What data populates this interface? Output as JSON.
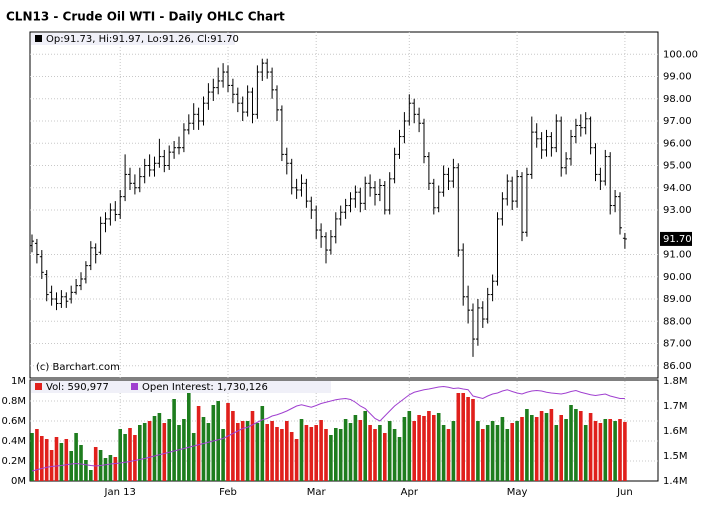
{
  "chart_data": {
    "type": "ohlc",
    "title": "CLN13 - Crude Oil WTI - Daily OHLC Chart",
    "legend_text": "Op:91.73, Hi:91.97, Lo:91.26, Cl:91.70",
    "copyright": "(c) Barchart.com",
    "last_price_label": "91.70",
    "volume_legend": "Vol: 590,977",
    "oi_legend": "Open Interest: 1,730,126",
    "bar_color": "#000000",
    "up_color": "#1e7d1e",
    "down_color": "#e0201c",
    "oi_color": "#a040d0",
    "grid": true,
    "categories": [
      null,
      null,
      null,
      null,
      null,
      null,
      null,
      null,
      null,
      null,
      null,
      null,
      null,
      null,
      null,
      null,
      null,
      null,
      "Jan 13",
      null,
      null,
      null,
      null,
      null,
      null,
      null,
      null,
      null,
      null,
      null,
      null,
      null,
      null,
      null,
      null,
      null,
      null,
      null,
      null,
      null,
      "Feb",
      null,
      null,
      null,
      null,
      null,
      null,
      null,
      null,
      null,
      null,
      null,
      null,
      null,
      null,
      null,
      null,
      null,
      "Mar",
      null,
      null,
      null,
      null,
      null,
      null,
      null,
      null,
      null,
      null,
      null,
      null,
      null,
      null,
      null,
      null,
      null,
      null,
      "Apr",
      null,
      null,
      null,
      null,
      null,
      null,
      null,
      null,
      null,
      null,
      null,
      null,
      null,
      null,
      null,
      null,
      null,
      null,
      null,
      null,
      null,
      "May",
      null,
      null,
      null,
      null,
      null,
      null,
      null,
      null,
      null,
      null,
      null,
      null,
      null,
      null,
      null,
      null,
      null,
      null,
      null,
      null,
      null,
      "Jun"
    ],
    "ylim": [
      85.45,
      101
    ],
    "yticks": [
      {
        "value": 86,
        "label": "86.00"
      },
      {
        "value": 87,
        "label": "87.00"
      },
      {
        "value": 88,
        "label": "88.00"
      },
      {
        "value": 89,
        "label": "89.00"
      },
      {
        "value": 90,
        "label": "90.00"
      },
      {
        "value": 91,
        "label": "91.00"
      },
      {
        "value": 93,
        "label": "93.00"
      },
      {
        "value": 94,
        "label": "94.00"
      },
      {
        "value": 95,
        "label": "95.00"
      },
      {
        "value": 96,
        "label": "96.00"
      },
      {
        "value": 97,
        "label": "97.00"
      },
      {
        "value": 98,
        "label": "98.00"
      },
      {
        "value": 99,
        "label": "99.00"
      },
      {
        "value": 100,
        "label": "100.00"
      }
    ],
    "ohlc": [
      [
        91.4,
        91.9,
        91.1,
        91.6
      ],
      [
        91.5,
        91.7,
        90.6,
        91.0
      ],
      [
        90.9,
        91.2,
        89.9,
        90.2
      ],
      [
        90.1,
        90.3,
        88.9,
        89.2
      ],
      [
        89.3,
        89.6,
        88.7,
        89.0
      ],
      [
        89.0,
        89.3,
        88.5,
        88.8
      ],
      [
        88.8,
        89.4,
        88.6,
        89.1
      ],
      [
        89.1,
        89.3,
        88.6,
        88.9
      ],
      [
        89.0,
        89.6,
        88.8,
        89.3
      ],
      [
        89.3,
        89.9,
        89.2,
        89.6
      ],
      [
        89.6,
        90.2,
        89.4,
        89.9
      ],
      [
        89.9,
        90.7,
        89.7,
        90.5
      ],
      [
        90.5,
        91.6,
        90.3,
        91.3
      ],
      [
        91.3,
        91.5,
        90.6,
        91.0
      ],
      [
        91.1,
        92.7,
        91.0,
        92.4
      ],
      [
        92.4,
        92.9,
        92.0,
        92.6
      ],
      [
        92.6,
        93.3,
        92.3,
        93.0
      ],
      [
        93.0,
        93.4,
        92.5,
        92.8
      ],
      [
        92.8,
        93.9,
        92.6,
        93.6
      ],
      [
        93.6,
        95.5,
        93.4,
        94.6
      ],
      [
        94.6,
        94.9,
        93.9,
        94.2
      ],
      [
        94.2,
        94.6,
        93.7,
        94.0
      ],
      [
        94.0,
        94.9,
        93.8,
        94.5
      ],
      [
        94.5,
        95.3,
        94.2,
        95.0
      ],
      [
        95.0,
        95.5,
        94.5,
        94.8
      ],
      [
        94.8,
        95.4,
        94.5,
        95.1
      ],
      [
        95.1,
        96.2,
        94.9,
        95.4
      ],
      [
        95.4,
        95.7,
        94.7,
        95.0
      ],
      [
        95.0,
        95.9,
        94.8,
        95.6
      ],
      [
        95.6,
        96.1,
        95.3,
        95.8
      ],
      [
        95.8,
        96.3,
        95.5,
        95.8
      ],
      [
        95.8,
        96.9,
        95.6,
        96.6
      ],
      [
        96.6,
        97.3,
        96.4,
        96.9
      ],
      [
        96.9,
        97.8,
        96.6,
        97.3
      ],
      [
        97.3,
        97.6,
        96.6,
        97.0
      ],
      [
        97.0,
        98.1,
        96.8,
        97.8
      ],
      [
        97.8,
        98.7,
        97.5,
        98.3
      ],
      [
        98.3,
        98.9,
        97.9,
        98.5
      ],
      [
        98.5,
        99.4,
        98.2,
        98.8
      ],
      [
        98.8,
        99.6,
        98.5,
        99.2
      ],
      [
        99.2,
        99.5,
        98.3,
        98.6
      ],
      [
        98.6,
        98.9,
        97.8,
        98.2
      ],
      [
        98.2,
        98.5,
        97.4,
        97.8
      ],
      [
        97.8,
        98.1,
        97.0,
        97.4
      ],
      [
        97.4,
        98.6,
        97.2,
        98.3
      ],
      [
        98.3,
        98.5,
        96.9,
        97.3
      ],
      [
        97.3,
        99.5,
        97.1,
        99.2
      ],
      [
        99.2,
        99.8,
        98.8,
        99.6
      ],
      [
        99.6,
        99.8,
        98.9,
        99.2
      ],
      [
        99.2,
        99.4,
        98.0,
        98.4
      ],
      [
        98.4,
        98.6,
        97.0,
        97.5
      ],
      [
        97.5,
        97.7,
        95.2,
        95.5
      ],
      [
        95.5,
        95.8,
        94.6,
        95.1
      ],
      [
        95.1,
        95.3,
        93.7,
        94.0
      ],
      [
        94.0,
        94.4,
        93.5,
        93.9
      ],
      [
        93.9,
        94.6,
        93.6,
        94.2
      ],
      [
        94.2,
        94.4,
        93.1,
        93.4
      ],
      [
        93.4,
        93.6,
        92.6,
        93.0
      ],
      [
        93.0,
        93.2,
        91.7,
        92.1
      ],
      [
        92.1,
        92.4,
        91.3,
        91.8
      ],
      [
        91.8,
        92.0,
        90.6,
        91.2
      ],
      [
        91.2,
        92.1,
        91.0,
        91.8
      ],
      [
        91.8,
        92.9,
        91.5,
        92.6
      ],
      [
        92.6,
        93.2,
        92.3,
        92.9
      ],
      [
        92.9,
        93.5,
        92.6,
        93.2
      ],
      [
        93.2,
        93.8,
        92.9,
        93.5
      ],
      [
        93.5,
        94.1,
        93.1,
        93.8
      ],
      [
        93.8,
        94.0,
        92.9,
        93.3
      ],
      [
        93.3,
        94.5,
        93.0,
        94.2
      ],
      [
        94.2,
        94.6,
        93.6,
        94.0
      ],
      [
        94.0,
        94.3,
        93.2,
        93.7
      ],
      [
        93.7,
        94.4,
        93.4,
        94.1
      ],
      [
        94.1,
        94.3,
        92.8,
        93.0
      ],
      [
        93.0,
        94.7,
        92.8,
        94.4
      ],
      [
        94.4,
        95.8,
        94.2,
        95.5
      ],
      [
        95.5,
        96.6,
        95.3,
        96.3
      ],
      [
        96.3,
        97.4,
        96.0,
        97.0
      ],
      [
        97.0,
        98.2,
        96.8,
        97.8
      ],
      [
        97.8,
        98.0,
        96.9,
        97.3
      ],
      [
        97.3,
        97.6,
        96.5,
        96.9
      ],
      [
        96.9,
        97.1,
        95.1,
        95.4
      ],
      [
        95.4,
        95.6,
        93.9,
        94.2
      ],
      [
        94.2,
        94.4,
        92.8,
        93.1
      ],
      [
        93.1,
        94.1,
        92.9,
        93.8
      ],
      [
        93.8,
        95.0,
        93.6,
        94.6
      ],
      [
        94.6,
        94.9,
        93.9,
        94.3
      ],
      [
        94.3,
        95.3,
        94.0,
        94.9
      ],
      [
        94.9,
        95.1,
        90.9,
        91.2
      ],
      [
        91.2,
        91.5,
        88.7,
        89.1
      ],
      [
        89.1,
        89.6,
        87.9,
        88.5
      ],
      [
        88.5,
        88.8,
        86.4,
        87.2
      ],
      [
        87.2,
        89.0,
        86.9,
        88.6
      ],
      [
        88.6,
        88.9,
        87.7,
        88.1
      ],
      [
        88.1,
        89.5,
        87.9,
        89.2
      ],
      [
        89.2,
        90.1,
        88.9,
        89.8
      ],
      [
        89.8,
        92.9,
        89.6,
        92.6
      ],
      [
        92.6,
        93.8,
        92.3,
        93.5
      ],
      [
        93.5,
        94.6,
        93.2,
        94.3
      ],
      [
        94.3,
        94.5,
        93.0,
        93.4
      ],
      [
        93.4,
        94.8,
        93.1,
        94.5
      ],
      [
        94.5,
        94.7,
        91.6,
        92.0
      ],
      [
        92.0,
        94.9,
        91.8,
        94.6
      ],
      [
        94.6,
        97.2,
        94.4,
        96.5
      ],
      [
        96.5,
        96.9,
        95.8,
        96.2
      ],
      [
        96.2,
        96.5,
        95.3,
        95.7
      ],
      [
        95.7,
        96.6,
        95.4,
        96.3
      ],
      [
        96.3,
        96.5,
        95.4,
        95.8
      ],
      [
        95.8,
        97.3,
        95.6,
        97.0
      ],
      [
        97.0,
        97.2,
        94.5,
        94.9
      ],
      [
        94.9,
        95.6,
        94.6,
        95.3
      ],
      [
        95.3,
        96.6,
        95.0,
        96.3
      ],
      [
        96.3,
        97.1,
        96.0,
        96.8
      ],
      [
        96.8,
        97.3,
        96.3,
        96.7
      ],
      [
        96.7,
        97.4,
        96.4,
        97.1
      ],
      [
        97.1,
        97.2,
        95.5,
        95.8
      ],
      [
        95.8,
        96.0,
        94.3,
        94.6
      ],
      [
        94.6,
        94.9,
        93.9,
        94.3
      ],
      [
        94.3,
        95.7,
        94.1,
        95.4
      ],
      [
        95.4,
        95.6,
        92.8,
        93.2
      ],
      [
        93.2,
        93.9,
        92.9,
        93.6
      ],
      [
        93.6,
        93.8,
        91.9,
        92.2
      ],
      [
        91.73,
        91.97,
        91.26,
        91.7
      ]
    ],
    "volume_ylim": [
      0,
      1000000
    ],
    "volume_ticks": [
      {
        "value": 0,
        "label": "0M"
      },
      {
        "value": 200000,
        "label": "0.2M"
      },
      {
        "value": 400000,
        "label": "0.4M"
      },
      {
        "value": 600000,
        "label": "0.6M"
      },
      {
        "value": 800000,
        "label": "0.8M"
      },
      {
        "value": 1000000,
        "label": "1M"
      }
    ],
    "volume": [
      480000,
      520000,
      450000,
      420000,
      310000,
      440000,
      380000,
      420000,
      300000,
      480000,
      360000,
      210000,
      110000,
      340000,
      310000,
      230000,
      260000,
      240000,
      520000,
      470000,
      530000,
      460000,
      560000,
      580000,
      600000,
      650000,
      680000,
      580000,
      620000,
      820000,
      560000,
      620000,
      920000,
      480000,
      750000,
      640000,
      580000,
      760000,
      800000,
      520000,
      780000,
      700000,
      580000,
      600000,
      600000,
      700000,
      580000,
      750000,
      570000,
      600000,
      540000,
      520000,
      600000,
      490000,
      420000,
      620000,
      560000,
      540000,
      560000,
      610000,
      520000,
      460000,
      530000,
      520000,
      620000,
      580000,
      660000,
      610000,
      700000,
      560000,
      520000,
      560000,
      480000,
      600000,
      520000,
      440000,
      640000,
      700000,
      600000,
      660000,
      650000,
      700000,
      660000,
      680000,
      560000,
      520000,
      600000,
      880000,
      880000,
      840000,
      820000,
      600000,
      520000,
      560000,
      600000,
      560000,
      640000,
      520000,
      580000,
      600000,
      640000,
      720000,
      660000,
      640000,
      700000,
      680000,
      720000,
      560000,
      660000,
      620000,
      760000,
      720000,
      700000,
      560000,
      680000,
      600000,
      580000,
      620000,
      620000,
      600000,
      620000,
      590977
    ],
    "oi_ylim": [
      1400000,
      1800000
    ],
    "oi_ticks": [
      {
        "value": 1400000,
        "label": "1.4M"
      },
      {
        "value": 1500000,
        "label": "1.5M"
      },
      {
        "value": 1600000,
        "label": "1.6M"
      },
      {
        "value": 1700000,
        "label": "1.7M"
      },
      {
        "value": 1800000,
        "label": "1.8M"
      }
    ],
    "open_interest": [
      1440000,
      1445000,
      1450000,
      1455000,
      1458000,
      1460000,
      1462000,
      1465000,
      1468000,
      1470000,
      1468000,
      1465000,
      1462000,
      1460000,
      1462000,
      1465000,
      1468000,
      1470000,
      1472000,
      1475000,
      1478000,
      1482000,
      1486000,
      1490000,
      1495000,
      1500000,
      1505000,
      1510000,
      1515000,
      1520000,
      1525000,
      1530000,
      1535000,
      1540000,
      1545000,
      1550000,
      1555000,
      1560000,
      1565000,
      1570000,
      1580000,
      1590000,
      1600000,
      1610000,
      1615000,
      1625000,
      1635000,
      1645000,
      1650000,
      1660000,
      1665000,
      1672000,
      1680000,
      1690000,
      1700000,
      1705000,
      1700000,
      1695000,
      1702000,
      1710000,
      1715000,
      1720000,
      1725000,
      1728000,
      1730000,
      1726000,
      1715000,
      1700000,
      1690000,
      1670000,
      1650000,
      1640000,
      1660000,
      1680000,
      1700000,
      1715000,
      1730000,
      1745000,
      1755000,
      1760000,
      1765000,
      1768000,
      1772000,
      1776000,
      1778000,
      1775000,
      1770000,
      1772000,
      1768000,
      1765000,
      1740000,
      1735000,
      1730000,
      1740000,
      1748000,
      1752000,
      1760000,
      1765000,
      1758000,
      1752000,
      1748000,
      1755000,
      1760000,
      1762000,
      1760000,
      1755000,
      1752000,
      1750000,
      1748000,
      1752000,
      1758000,
      1762000,
      1755000,
      1750000,
      1745000,
      1742000,
      1745000,
      1748000,
      1740000,
      1735000,
      1730000,
      1730126
    ]
  }
}
